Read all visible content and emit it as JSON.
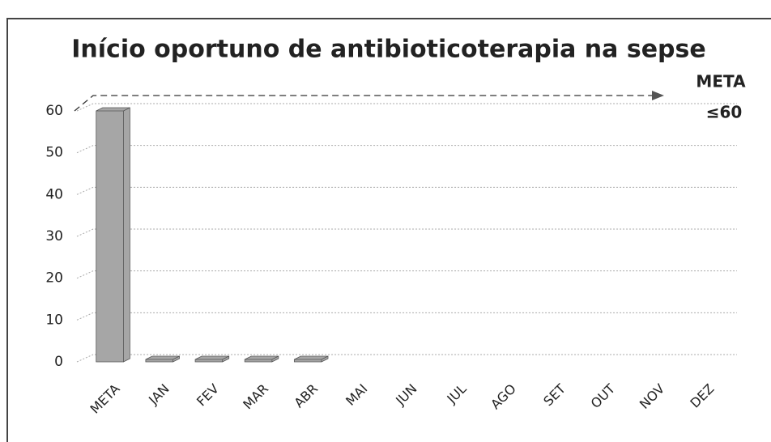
{
  "chart_data": {
    "type": "bar3d",
    "title": "Início oportuno de antibioticoterapia na sepse",
    "categories": [
      "META",
      "JAN",
      "FEV",
      "MAR",
      "ABR",
      "MAI",
      "JUN",
      "JUL",
      "AGO",
      "SET",
      "OUT",
      "NOV",
      "DEZ"
    ],
    "values": [
      60,
      0,
      0,
      0,
      0,
      null,
      null,
      null,
      null,
      null,
      null,
      null,
      null
    ],
    "color": "#a6a6a6",
    "ylim": [
      0,
      60
    ],
    "yticks": [
      0,
      10,
      20,
      30,
      40,
      50,
      60
    ],
    "grid": true,
    "annotations": [
      "META",
      "≤60"
    ]
  }
}
